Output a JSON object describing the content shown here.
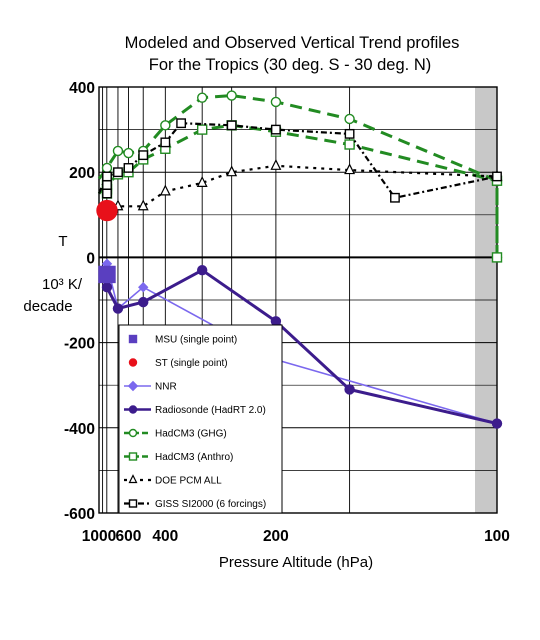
{
  "colors": {
    "hadcm3_ghg": "#228B22",
    "hadcm3_anthro": "#228B22",
    "doe_pcm": "#000000",
    "giss": "#000000",
    "nnr": "#7B68EE",
    "radiosonde": "#3C1C8C",
    "msu": "#5A3FC0",
    "st": "#E8101A",
    "tropopause_band": "#C8C8C8"
  },
  "chart_data": {
    "type": "line",
    "title": "Modeled and Observed Vertical Trend profiles",
    "subtitle": "For the Tropics (30 deg. S - 30 deg. N)",
    "xlabel": "Pressure Altitude  (hPa)",
    "ylabel_lines": [
      "T",
      "10³  K/",
      "decade"
    ],
    "x_axis": {
      "scale": "reciprocal",
      "reversed": true,
      "xlim": [
        1000,
        100
      ],
      "ticks": [
        1000,
        600,
        400,
        200,
        100
      ],
      "tick_labels": [
        "1000",
        "600",
        "400",
        "200",
        "100"
      ]
    },
    "ylim": [
      -600,
      400
    ],
    "yticks": [
      400,
      200,
      0,
      -200,
      -400,
      -600
    ],
    "ytick_labels": [
      "400",
      "200",
      "0",
      "-200",
      "-400",
      "-600"
    ],
    "grid": true,
    "legend_position": "lower-left",
    "series": [
      {
        "name": "MSU (single point)",
        "marker": "square",
        "line": "none",
        "points": [
          [
            850,
            -40
          ]
        ]
      },
      {
        "name": "ST (single point)",
        "marker": "circle",
        "line": "none",
        "points": [
          [
            1000,
            110
          ]
        ]
      },
      {
        "name": "NNR",
        "marker": "diamond",
        "line": "solid",
        "points": [
          [
            1000,
            -55
          ],
          [
            850,
            -15
          ],
          [
            700,
            -120
          ],
          [
            500,
            -70
          ],
          [
            200,
            -240
          ],
          [
            100,
            -390
          ]
        ]
      },
      {
        "name": "Radiosonde (HadRT 2.0)",
        "marker": "circle",
        "line": "solid",
        "points": [
          [
            850,
            -70
          ],
          [
            700,
            -120
          ],
          [
            500,
            -105
          ],
          [
            300,
            -30
          ],
          [
            200,
            -150
          ],
          [
            150,
            -310
          ],
          [
            100,
            -390
          ]
        ]
      },
      {
        "name": "HadCM3 (GHG)",
        "marker": "circle-open",
        "line": "dashed",
        "points": [
          [
            1000,
            185
          ],
          [
            925,
            195
          ],
          [
            850,
            210
          ],
          [
            700,
            250
          ],
          [
            600,
            245
          ],
          [
            500,
            250
          ],
          [
            400,
            310
          ],
          [
            300,
            375
          ],
          [
            250,
            380
          ],
          [
            200,
            365
          ],
          [
            150,
            325
          ],
          [
            100,
            180
          ],
          [
            100,
            0
          ]
        ]
      },
      {
        "name": "HadCM3 (Anthro)",
        "marker": "square-open",
        "line": "dashed",
        "points": [
          [
            1000,
            150
          ],
          [
            925,
            160
          ],
          [
            850,
            170
          ],
          [
            700,
            195
          ],
          [
            600,
            200
          ],
          [
            500,
            230
          ],
          [
            400,
            255
          ],
          [
            300,
            300
          ],
          [
            250,
            310
          ],
          [
            200,
            295
          ],
          [
            150,
            265
          ],
          [
            100,
            180
          ],
          [
            100,
            0
          ]
        ]
      },
      {
        "name": "DOE PCM ALL",
        "marker": "triangle-open",
        "line": "dotted",
        "points": [
          [
            1000,
            120
          ],
          [
            925,
            115
          ],
          [
            850,
            110
          ],
          [
            700,
            120
          ],
          [
            500,
            120
          ],
          [
            400,
            155
          ],
          [
            300,
            175
          ],
          [
            250,
            200
          ],
          [
            200,
            215
          ],
          [
            150,
            205
          ],
          [
            100,
            190
          ]
        ]
      },
      {
        "name": "GISS SI2000 (6 forcings)",
        "marker": "square-open",
        "line": "dashdot",
        "points": [
          [
            1000,
            150
          ],
          [
            925,
            170
          ],
          [
            850,
            190
          ],
          [
            700,
            200
          ],
          [
            600,
            210
          ],
          [
            500,
            240
          ],
          [
            400,
            270
          ],
          [
            350,
            315
          ],
          [
            250,
            310
          ],
          [
            200,
            300
          ],
          [
            150,
            290
          ],
          [
            130,
            140
          ],
          [
            100,
            190
          ]
        ]
      }
    ]
  }
}
